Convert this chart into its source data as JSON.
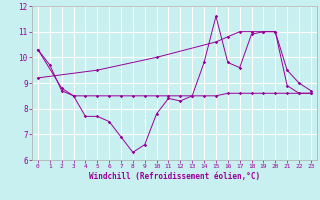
{
  "xlabel": "Windchill (Refroidissement éolien,°C)",
  "xlim": [
    -0.5,
    23.5
  ],
  "ylim": [
    6,
    12
  ],
  "yticks": [
    6,
    7,
    8,
    9,
    10,
    11,
    12
  ],
  "xticks": [
    0,
    1,
    2,
    3,
    4,
    5,
    6,
    7,
    8,
    9,
    10,
    11,
    12,
    13,
    14,
    15,
    16,
    17,
    18,
    19,
    20,
    21,
    22,
    23
  ],
  "bg_color": "#c8f0f0",
  "line_color": "#990099",
  "grid_color": "#ffffff",
  "line1_x": [
    0,
    1,
    2,
    3,
    4,
    5,
    6,
    7,
    8,
    9,
    10,
    11,
    12,
    13,
    14,
    15,
    16,
    17,
    18,
    19,
    20,
    21,
    22,
    23
  ],
  "line1_y": [
    10.3,
    9.7,
    8.7,
    8.5,
    7.7,
    7.7,
    7.5,
    6.9,
    6.3,
    6.6,
    7.8,
    8.4,
    8.3,
    8.5,
    9.8,
    11.6,
    9.8,
    9.6,
    10.9,
    11.0,
    11.0,
    8.9,
    8.6,
    8.6
  ],
  "line2_x": [
    0,
    2,
    3,
    4,
    5,
    6,
    7,
    8,
    9,
    10,
    11,
    12,
    13,
    14,
    15,
    16,
    17,
    18,
    19,
    20,
    21,
    22,
    23
  ],
  "line2_y": [
    10.3,
    8.8,
    8.5,
    8.5,
    8.5,
    8.5,
    8.5,
    8.5,
    8.5,
    8.5,
    8.5,
    8.5,
    8.5,
    8.5,
    8.5,
    8.6,
    8.6,
    8.6,
    8.6,
    8.6,
    8.6,
    8.6,
    8.6
  ],
  "line3_x": [
    0,
    5,
    10,
    15,
    16,
    17,
    18,
    19,
    20,
    21,
    22,
    23
  ],
  "line3_y": [
    9.2,
    9.5,
    10.0,
    10.6,
    10.8,
    11.0,
    11.0,
    11.0,
    11.0,
    9.5,
    9.0,
    8.7
  ]
}
